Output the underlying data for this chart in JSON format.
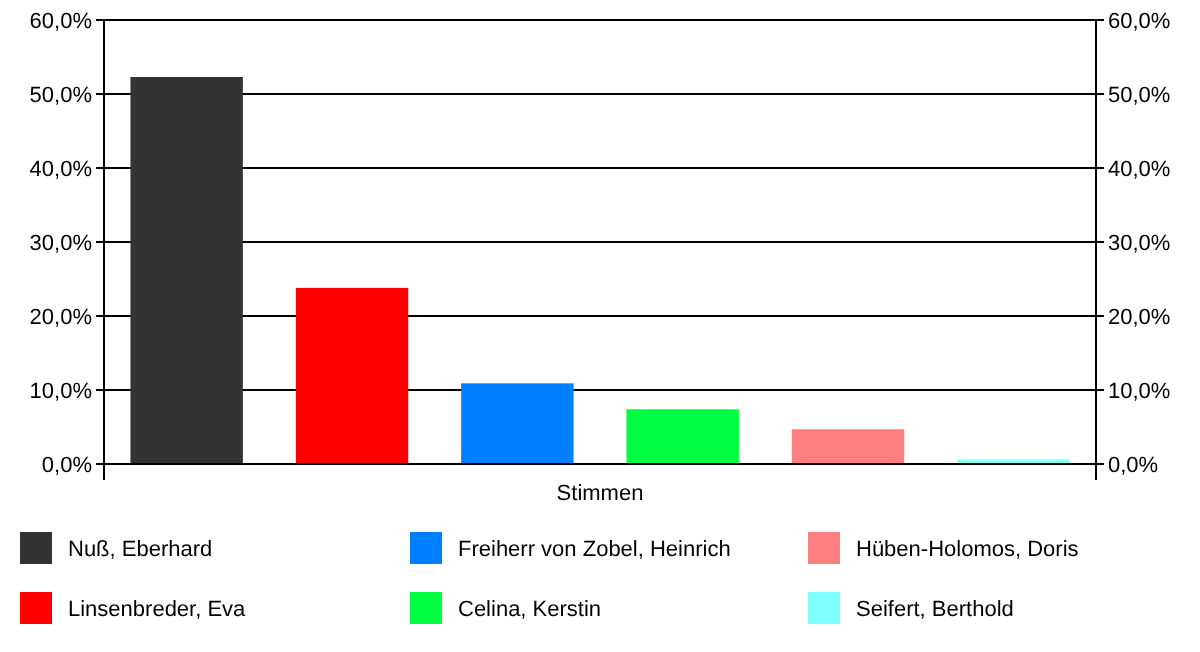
{
  "chart_data": {
    "type": "bar",
    "categories": [
      "Stimmen"
    ],
    "series": [
      {
        "name": "Nuß, Eberhard",
        "color": "#333333",
        "values": [
          52.3
        ]
      },
      {
        "name": "Linsenbreder, Eva",
        "color": "#ff0000",
        "values": [
          23.8
        ]
      },
      {
        "name": "Freiherr von Zobel, Heinrich",
        "color": "#0080ff",
        "values": [
          10.9
        ]
      },
      {
        "name": "Celina, Kerstin",
        "color": "#00ff40",
        "values": [
          7.4
        ]
      },
      {
        "name": "Hüben-Holomos, Doris",
        "color": "#ff8080",
        "values": [
          4.7
        ]
      },
      {
        "name": "Seifert, Berthold",
        "color": "#80ffff",
        "values": [
          0.6
        ]
      }
    ],
    "ylim": [
      0,
      60
    ],
    "yticks": [
      {
        "value": 0,
        "label": "0,0%"
      },
      {
        "value": 10,
        "label": "10,0%"
      },
      {
        "value": 20,
        "label": "20,0%"
      },
      {
        "value": 30,
        "label": "30,0%"
      },
      {
        "value": 40,
        "label": "40,0%"
      },
      {
        "value": 50,
        "label": "50,0%"
      },
      {
        "value": 60,
        "label": "60,0%"
      }
    ],
    "grid": "y",
    "legend": "bottom"
  }
}
